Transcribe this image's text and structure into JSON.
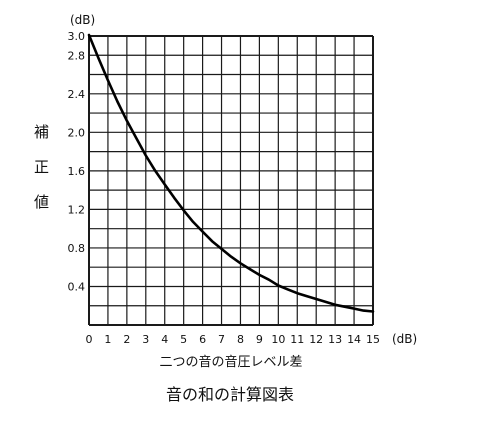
{
  "chart_data": {
    "type": "line",
    "title": "音の和の計算図表",
    "xlabel": "二つの音の音圧レベル差",
    "x_unit": "(dB)",
    "ylabel": [
      "補",
      "正",
      "値"
    ],
    "y_unit": "(dB)",
    "xlim": [
      0,
      15
    ],
    "ylim": [
      0,
      3.0
    ],
    "grid": true,
    "x_ticks": [
      "0",
      "1",
      "2",
      "3",
      "4",
      "5",
      "6",
      "7",
      "8",
      "9",
      "10",
      "11",
      "12",
      "13",
      "14",
      "15"
    ],
    "y_ticks": [
      "0.4",
      "0.8",
      "1.2",
      "1.6",
      "2.0",
      "2.4",
      "2.8",
      "3.0"
    ],
    "series": [
      {
        "x": [
          0,
          0.5,
          1,
          1.5,
          2,
          2.5,
          3,
          3.5,
          4,
          4.5,
          5,
          5.5,
          6,
          6.5,
          7,
          7.5,
          8,
          8.5,
          9,
          9.5,
          10,
          10.5,
          11,
          11.5,
          12,
          12.5,
          13,
          13.5,
          14,
          14.5,
          15
        ],
        "y": [
          3.01,
          2.77,
          2.54,
          2.32,
          2.12,
          1.94,
          1.76,
          1.6,
          1.46,
          1.32,
          1.19,
          1.07,
          0.97,
          0.87,
          0.79,
          0.71,
          0.64,
          0.58,
          0.52,
          0.47,
          0.41,
          0.37,
          0.33,
          0.3,
          0.27,
          0.24,
          0.21,
          0.19,
          0.17,
          0.15,
          0.14
        ]
      }
    ]
  }
}
